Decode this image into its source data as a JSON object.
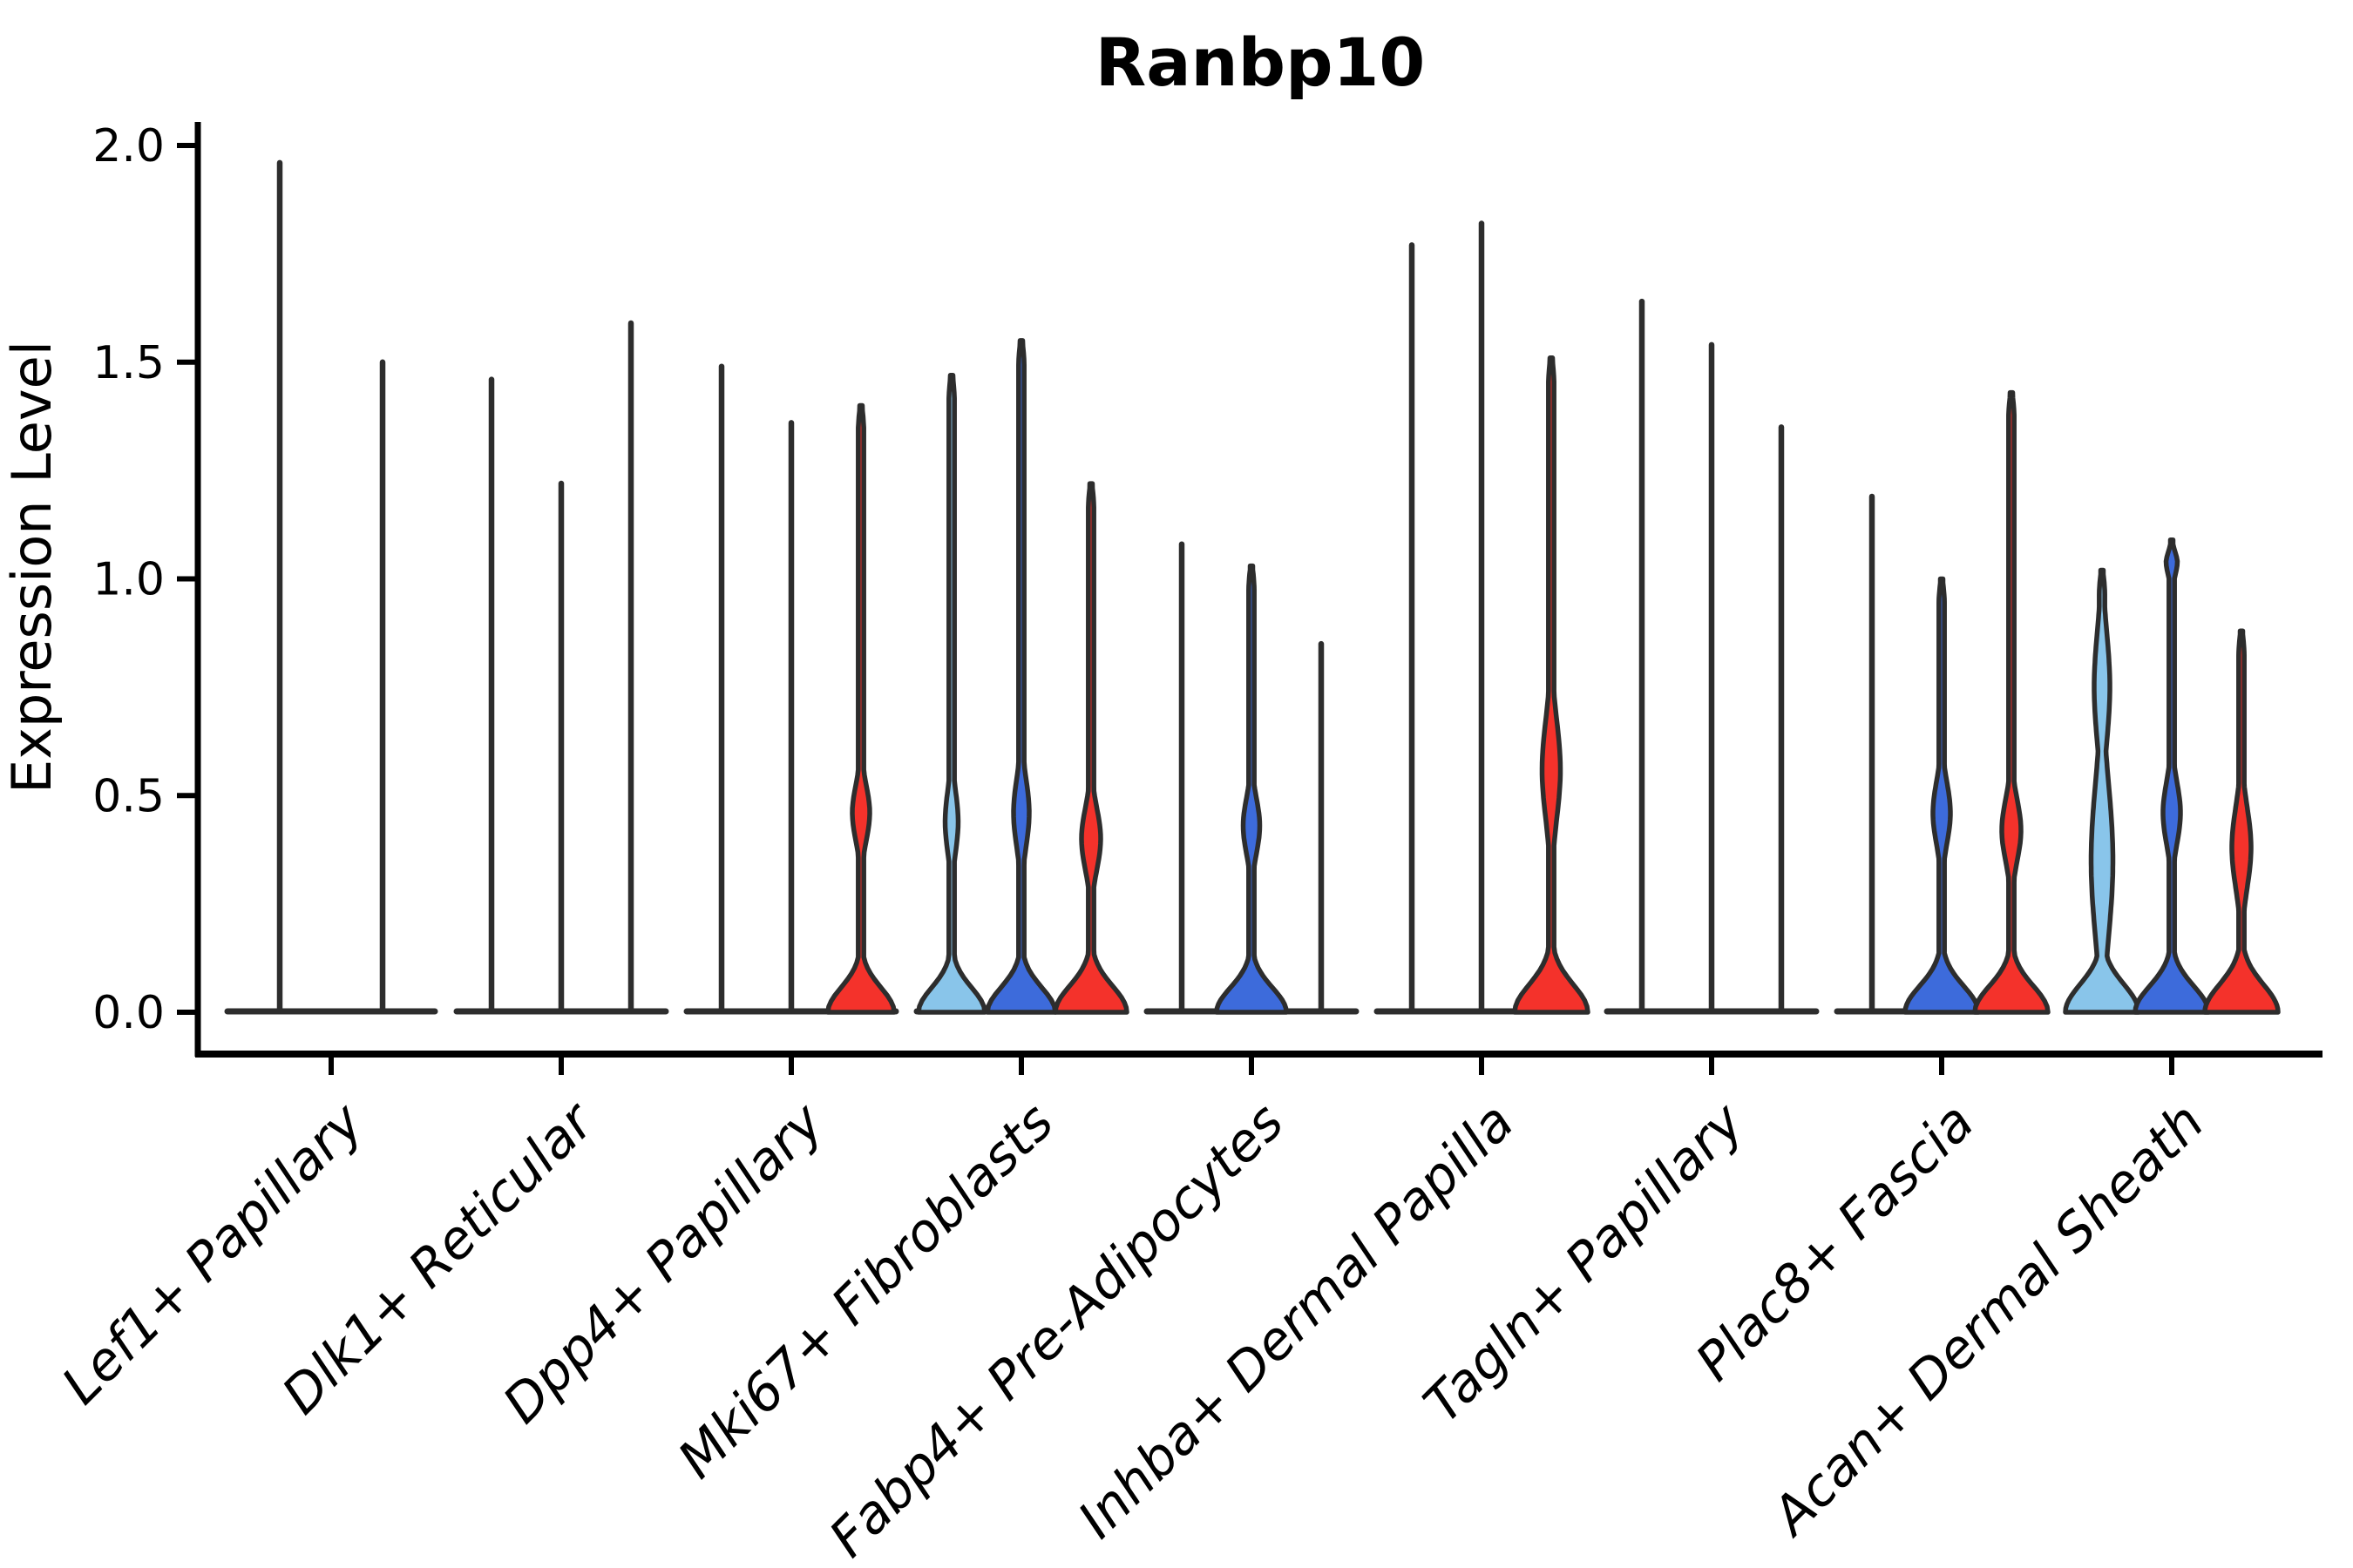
{
  "figure": {
    "background": "#ffffff"
  },
  "chart_data": {
    "type": "violin",
    "title": "Ranbp10",
    "ylabel": "Expression Level",
    "xlabel": "",
    "ylim": [
      0.0,
      2.0
    ],
    "yticks": [
      0.0,
      0.5,
      1.0,
      1.5,
      2.0
    ],
    "ytick_labels": [
      "0.0",
      "0.5",
      "1.0",
      "1.5",
      "2.0"
    ],
    "grid": false,
    "legend": "none",
    "palette": {
      "skyblue": "#89C5EA",
      "blue": "#3D6BDB",
      "red": "#F4322B",
      "edge": "#2D2D2D",
      "axis": "#000000"
    },
    "note": "violins squashed at 0; values are max expression (spike tops); colored violins have a mid bulge and a bell base at 0",
    "groups": [
      {
        "label": "Lef1+ Papillary",
        "violins": [
          {
            "color": null,
            "shape": "spike",
            "peak": 1.96
          },
          {
            "color": null,
            "shape": "spike",
            "peak": 1.5
          }
        ]
      },
      {
        "label": "Dlk1+ Reticular",
        "violins": [
          {
            "color": null,
            "shape": "spike",
            "peak": 1.46
          },
          {
            "color": null,
            "shape": "spike",
            "peak": 1.22
          },
          {
            "color": null,
            "shape": "spike",
            "peak": 1.59
          }
        ]
      },
      {
        "label": "Dpp4+ Papillary",
        "violins": [
          {
            "color": null,
            "shape": "spike",
            "peak": 1.49
          },
          {
            "color": null,
            "shape": "spike",
            "peak": 1.36
          },
          {
            "color": "red",
            "shape": "body",
            "peak": 1.4,
            "base": 38,
            "baseSigma": 0.08,
            "bulges": [
              {
                "c": 0.46,
                "s": 0.09,
                "a": 10
              }
            ]
          }
        ]
      },
      {
        "label": "Mki67+ Fibroblasts",
        "violins": [
          {
            "color": "skyblue",
            "shape": "body",
            "peak": 1.47,
            "base": 38,
            "baseSigma": 0.08,
            "bulges": [
              {
                "c": 0.44,
                "s": 0.1,
                "a": 7.5
              }
            ]
          },
          {
            "color": "blue",
            "shape": "body",
            "peak": 1.55,
            "base": 39,
            "baseSigma": 0.08,
            "bulges": [
              {
                "c": 0.46,
                "s": 0.11,
                "a": 9
              }
            ]
          },
          {
            "color": "red",
            "shape": "body",
            "peak": 1.22,
            "base": 41,
            "baseSigma": 0.085,
            "bulges": [
              {
                "c": 0.4,
                "s": 0.1,
                "a": 11
              }
            ]
          }
        ]
      },
      {
        "label": "Fabp4+ Pre-Adipocytes",
        "violins": [
          {
            "color": null,
            "shape": "spike",
            "peak": 1.08
          },
          {
            "color": "blue",
            "shape": "body",
            "peak": 1.03,
            "base": 40,
            "baseSigma": 0.08,
            "bulges": [
              {
                "c": 0.43,
                "s": 0.09,
                "a": 9.5
              }
            ]
          },
          {
            "color": null,
            "shape": "spike",
            "peak": 0.85
          }
        ]
      },
      {
        "label": "Inhba+ Dermal Papilla",
        "violins": [
          {
            "color": null,
            "shape": "spike",
            "peak": 1.77
          },
          {
            "color": null,
            "shape": "spike",
            "peak": 1.82
          },
          {
            "color": "red",
            "shape": "body",
            "peak": 1.51,
            "base": 42,
            "baseSigma": 0.09,
            "bulges": [
              {
                "c": 0.56,
                "s": 0.16,
                "a": 10.5
              }
            ]
          }
        ]
      },
      {
        "label": "Tagln+ Papillary",
        "violins": [
          {
            "color": null,
            "shape": "spike",
            "peak": 1.64
          },
          {
            "color": null,
            "shape": "spike",
            "peak": 1.54
          },
          {
            "color": null,
            "shape": "spike",
            "peak": 1.35
          }
        ]
      },
      {
        "label": "Plac8+ Fascia",
        "violins": [
          {
            "color": null,
            "shape": "spike",
            "peak": 1.19
          },
          {
            "color": "blue",
            "shape": "body",
            "peak": 1.0,
            "base": 42,
            "baseSigma": 0.085,
            "bulges": [
              {
                "c": 0.46,
                "s": 0.1,
                "a": 10
              }
            ]
          },
          {
            "color": "red",
            "shape": "body",
            "peak": 1.43,
            "base": 42,
            "baseSigma": 0.085,
            "bulges": [
              {
                "c": 0.42,
                "s": 0.1,
                "a": 11
              }
            ]
          }
        ]
      },
      {
        "label": "Acan+ Dermal Sheath",
        "violins": [
          {
            "color": "skyblue",
            "shape": "body",
            "peak": 1.02,
            "base": 42,
            "baseSigma": 0.09,
            "bulges": [
              {
                "c": 0.35,
                "s": 0.25,
                "a": 12.5
              },
              {
                "c": 0.75,
                "s": 0.18,
                "a": 9
              }
            ]
          },
          {
            "color": "blue",
            "shape": "body",
            "peak": 1.09,
            "base": 42,
            "baseSigma": 0.085,
            "bulges": [
              {
                "c": 0.46,
                "s": 0.1,
                "a": 10
              },
              {
                "c": 1.04,
                "s": 0.045,
                "a": 6.5
              }
            ]
          },
          {
            "color": "red",
            "shape": "body",
            "peak": 0.88,
            "base": 42,
            "baseSigma": 0.09,
            "bulges": [
              {
                "c": 0.38,
                "s": 0.13,
                "a": 11
              }
            ]
          }
        ]
      }
    ]
  }
}
